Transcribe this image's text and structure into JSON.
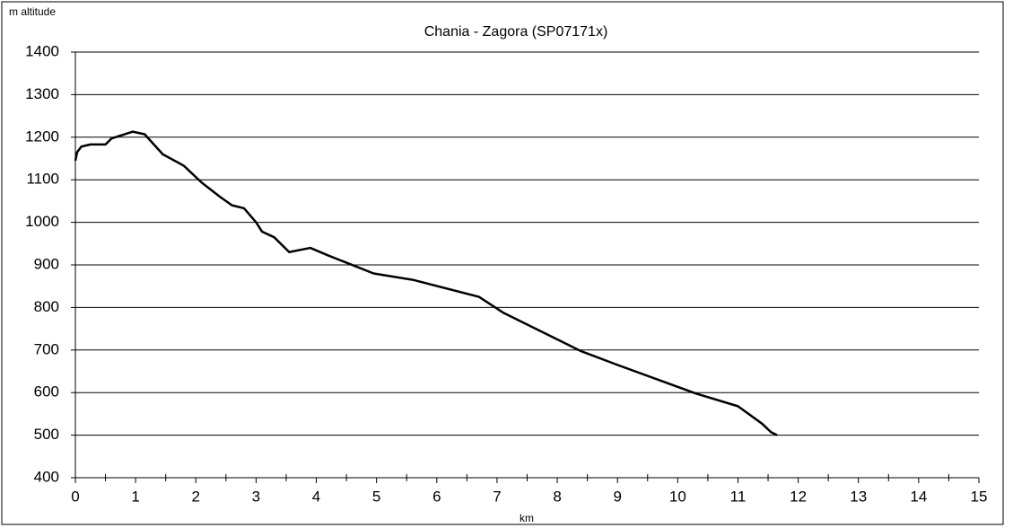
{
  "chart_data": {
    "type": "line",
    "title": "Chania - Zagora (SP07171x)",
    "y_label": "m altitude",
    "x_label": "km",
    "x": [
      0,
      0.03,
      0.1,
      0.25,
      0.5,
      0.6,
      0.95,
      1.15,
      1.45,
      1.8,
      2.1,
      2.4,
      2.6,
      2.8,
      3.0,
      3.1,
      3.3,
      3.55,
      3.9,
      4.2,
      4.95,
      5.6,
      6.7,
      7.1,
      8.4,
      9.0,
      10.3,
      11.0,
      11.4,
      11.55,
      11.65
    ],
    "series": [
      {
        "name": "altitude",
        "color": "#000000",
        "values": [
          1145,
          1165,
          1178,
          1183,
          1183,
          1197,
          1213,
          1207,
          1160,
          1133,
          1093,
          1060,
          1040,
          1033,
          1000,
          978,
          965,
          930,
          940,
          922,
          880,
          865,
          825,
          788,
          697,
          665,
          598,
          568,
          527,
          507,
          500
        ]
      }
    ],
    "xlim": [
      0,
      15
    ],
    "xticks": [
      0,
      1,
      2,
      3,
      4,
      5,
      6,
      7,
      8,
      9,
      10,
      11,
      12,
      13,
      14,
      15
    ],
    "ylim": [
      400,
      1400
    ],
    "yticks": [
      400,
      500,
      600,
      700,
      800,
      900,
      1000,
      1100,
      1200,
      1300,
      1400
    ],
    "grid": true
  }
}
